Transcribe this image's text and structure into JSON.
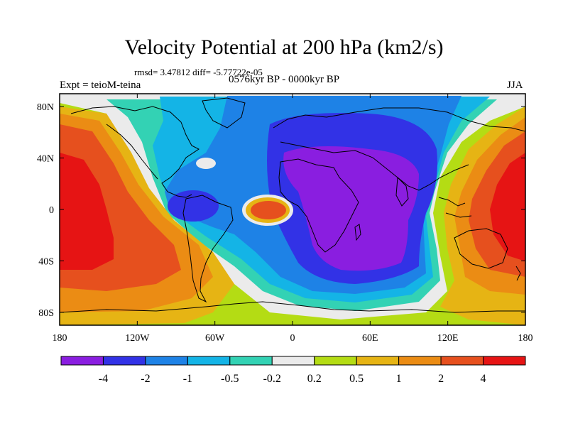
{
  "title": "Velocity Potential at 200 hPa (km2/s)",
  "stats_line": "rmsd= 3.47812 diff= -5.77722e-05",
  "experiment": "Expt = teioM-teina",
  "period": "0576kyr BP - 0000kyr BP",
  "season": "JJA",
  "map": {
    "lon_range": [
      -180,
      180
    ],
    "lat_range": [
      -90,
      90
    ],
    "y_ticks": [
      {
        "label": "80N",
        "lat": 80
      },
      {
        "label": "40N",
        "lat": 40
      },
      {
        "label": "0",
        "lat": 0
      },
      {
        "label": "40S",
        "lat": -40
      },
      {
        "label": "80S",
        "lat": -80
      }
    ],
    "x_ticks": [
      {
        "label": "180",
        "lon": -180
      },
      {
        "label": "120W",
        "lon": -120
      },
      {
        "label": "60W",
        "lon": -60
      },
      {
        "label": "0",
        "lon": 0
      },
      {
        "label": "60E",
        "lon": 60
      },
      {
        "label": "120E",
        "lon": 120
      },
      {
        "label": "180",
        "lon": 180
      }
    ]
  },
  "colorbar": {
    "colors": [
      "#8a1ee0",
      "#3232e6",
      "#1e82e6",
      "#14b4e6",
      "#33d2b4",
      "#ebebeb",
      "#b4dc14",
      "#e6b414",
      "#eb8c14",
      "#e6501e",
      "#e61414"
    ],
    "labels": [
      "-4",
      "-2",
      "-1",
      "-0.5",
      "-0.2",
      "0.2",
      "0.5",
      "1",
      "2",
      "4"
    ]
  }
}
